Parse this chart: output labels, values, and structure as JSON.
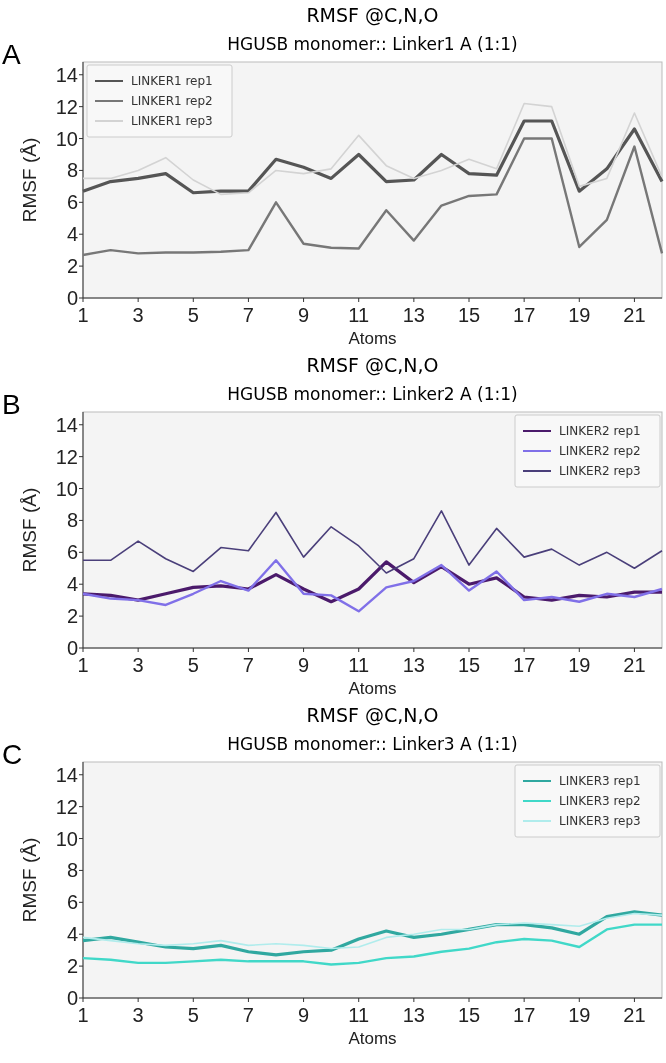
{
  "chart_data": [
    {
      "type": "line",
      "title": "RMSF @C,N,O",
      "subtitle": "HGUSB monomer:: Linker1 A (1:1)",
      "xlabel": "Atoms",
      "ylabel": "RMSF (Å)",
      "annotations": [
        "A"
      ],
      "x": [
        1,
        2,
        3,
        4,
        5,
        6,
        7,
        8,
        9,
        10,
        11,
        12,
        13,
        14,
        15,
        16,
        17,
        18,
        19,
        20,
        21,
        22
      ],
      "xlim": [
        1,
        22
      ],
      "xticks": [
        1,
        3,
        5,
        7,
        9,
        11,
        13,
        15,
        17,
        19,
        21
      ],
      "ylim": [
        0,
        14.8
      ],
      "yticks": [
        0,
        2,
        4,
        6,
        8,
        10,
        12,
        14
      ],
      "grid": false,
      "legend": "top left",
      "marker": "none",
      "line_style": "solid",
      "series": [
        {
          "name": "LINKER1 rep1",
          "color": "#555555",
          "values": [
            6.7,
            7.3,
            7.5,
            7.8,
            6.6,
            6.7,
            6.7,
            8.7,
            8.2,
            7.5,
            9.0,
            7.3,
            7.4,
            9.0,
            7.8,
            7.7,
            11.1,
            11.1,
            6.7,
            8.1,
            10.6,
            7.3
          ]
        },
        {
          "name": "LINKER1 rep2",
          "color": "#777777",
          "values": [
            2.7,
            3.0,
            2.8,
            2.85,
            2.85,
            2.9,
            3.0,
            6.0,
            3.4,
            3.15,
            3.1,
            5.5,
            3.6,
            5.8,
            6.4,
            6.5,
            10.0,
            10.0,
            3.2,
            4.9,
            9.5,
            2.8
          ]
        },
        {
          "name": "LINKER1 rep3",
          "color": "#d3d3d3",
          "values": [
            7.5,
            7.5,
            8.0,
            8.8,
            7.4,
            6.5,
            6.6,
            8.0,
            7.8,
            8.1,
            10.2,
            8.3,
            7.5,
            8.0,
            8.7,
            8.1,
            12.2,
            12.0,
            7.0,
            7.5,
            11.6,
            7.6
          ]
        }
      ]
    },
    {
      "type": "line",
      "title": "RMSF @C,N,O",
      "subtitle": "HGUSB monomer:: Linker2 A (1:1)",
      "xlabel": "Atoms",
      "ylabel": "RMSF (Å)",
      "annotations": [
        "B"
      ],
      "x": [
        1,
        2,
        3,
        4,
        5,
        6,
        7,
        8,
        9,
        10,
        11,
        12,
        13,
        14,
        15,
        16,
        17,
        18,
        19,
        20,
        21,
        22
      ],
      "xlim": [
        1,
        22
      ],
      "xticks": [
        1,
        3,
        5,
        7,
        9,
        11,
        13,
        15,
        17,
        19,
        21
      ],
      "ylim": [
        0,
        14.8
      ],
      "yticks": [
        0,
        2,
        4,
        6,
        8,
        10,
        12,
        14
      ],
      "grid": false,
      "legend": "top right",
      "marker": "none",
      "line_style": "solid",
      "series": [
        {
          "name": "LINKER2 rep1",
          "color": "#4b1a6b",
          "values": [
            3.4,
            3.3,
            3.0,
            3.4,
            3.8,
            3.9,
            3.7,
            4.6,
            3.7,
            2.9,
            3.7,
            5.4,
            4.1,
            5.1,
            4.0,
            4.4,
            3.2,
            3.0,
            3.3,
            3.2,
            3.5,
            3.5
          ]
        },
        {
          "name": "LINKER2 rep2",
          "color": "#8070e8",
          "values": [
            3.4,
            3.1,
            3.0,
            2.7,
            3.4,
            4.2,
            3.6,
            5.5,
            3.4,
            3.3,
            2.3,
            3.8,
            4.2,
            5.2,
            3.6,
            4.8,
            3.0,
            3.2,
            2.9,
            3.4,
            3.2,
            3.7
          ]
        },
        {
          "name": "LINKER2 rep3",
          "color": "#4a3f7a",
          "values": [
            5.5,
            5.5,
            6.7,
            5.6,
            4.8,
            6.3,
            6.1,
            8.5,
            5.7,
            7.6,
            6.4,
            4.7,
            5.6,
            8.6,
            5.2,
            7.5,
            5.7,
            6.2,
            5.2,
            6.0,
            5.0,
            6.1
          ]
        }
      ]
    },
    {
      "type": "line",
      "title": "RMSF @C,N,O",
      "subtitle": "HGUSB monomer:: Linker3 A (1:1)",
      "xlabel": "Atoms",
      "ylabel": "RMSF (Å)",
      "annotations": [
        "C"
      ],
      "x": [
        1,
        2,
        3,
        4,
        5,
        6,
        7,
        8,
        9,
        10,
        11,
        12,
        13,
        14,
        15,
        16,
        17,
        18,
        19,
        20,
        21,
        22
      ],
      "xlim": [
        1,
        22
      ],
      "xticks": [
        1,
        3,
        5,
        7,
        9,
        11,
        13,
        15,
        17,
        19,
        21
      ],
      "ylim": [
        0,
        14.8
      ],
      "yticks": [
        0,
        2,
        4,
        6,
        8,
        10,
        12,
        14
      ],
      "grid": false,
      "legend": "top right",
      "marker": "none",
      "line_style": "solid",
      "series": [
        {
          "name": "LINKER3 rep1",
          "color": "#30a8a0",
          "values": [
            3.6,
            3.8,
            3.5,
            3.2,
            3.1,
            3.3,
            2.9,
            2.7,
            2.9,
            3.0,
            3.7,
            4.2,
            3.8,
            4.0,
            4.3,
            4.6,
            4.6,
            4.4,
            4.0,
            5.1,
            5.4,
            5.2
          ]
        },
        {
          "name": "LINKER3 rep2",
          "color": "#40d8c8",
          "values": [
            2.5,
            2.4,
            2.2,
            2.2,
            2.3,
            2.4,
            2.3,
            2.3,
            2.3,
            2.1,
            2.2,
            2.5,
            2.6,
            2.9,
            3.1,
            3.5,
            3.7,
            3.6,
            3.2,
            4.3,
            4.6,
            4.6
          ]
        },
        {
          "name": "LINKER3 rep3",
          "color": "#b0ecec",
          "values": [
            3.8,
            3.6,
            3.4,
            3.3,
            3.4,
            3.6,
            3.3,
            3.4,
            3.3,
            3.1,
            3.2,
            3.8,
            4.0,
            4.3,
            4.3,
            4.6,
            4.7,
            4.6,
            4.5,
            5.0,
            5.3,
            5.2
          ]
        }
      ]
    }
  ]
}
